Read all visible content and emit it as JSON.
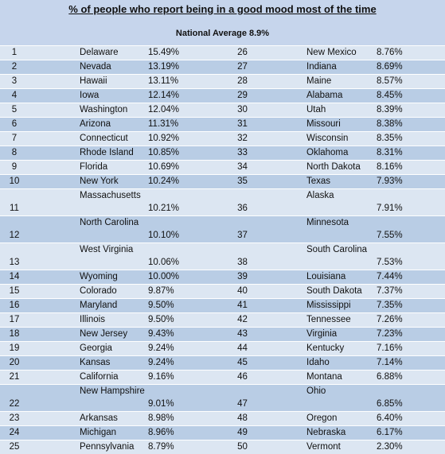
{
  "title": "% of people who report being in a good mood most of the time",
  "subtitle": "National Average 8.9%",
  "rows": [
    [
      1,
      "Delaware",
      "15.49%",
      26,
      "New Mexico",
      "8.76%"
    ],
    [
      2,
      "Nevada",
      "13.19%",
      27,
      "Indiana",
      "8.69%"
    ],
    [
      3,
      "Hawaii",
      "13.11%",
      28,
      "Maine",
      "8.57%"
    ],
    [
      4,
      "Iowa",
      "12.14%",
      29,
      "Alabama",
      "8.45%"
    ],
    [
      5,
      "Washington",
      "12.04%",
      30,
      "Utah",
      "8.39%"
    ],
    [
      6,
      "Arizona",
      "11.31%",
      31,
      "Missouri",
      "8.38%"
    ],
    [
      7,
      "Connecticut",
      "10.92%",
      32,
      "Wisconsin",
      "8.35%"
    ],
    [
      8,
      "Rhode Island",
      "10.85%",
      33,
      "Oklahoma",
      "8.31%"
    ],
    [
      9,
      "Florida",
      "10.69%",
      34,
      "North Dakota",
      "8.16%"
    ],
    [
      10,
      "New York",
      "10.24%",
      35,
      "Texas",
      "7.93%"
    ],
    [
      11,
      "Massachusetts",
      "10.21%",
      36,
      "Alaska",
      "7.91%"
    ],
    [
      12,
      "North Carolina",
      "10.10%",
      37,
      "Minnesota",
      "7.55%"
    ],
    [
      13,
      "West Virginia",
      "10.06%",
      38,
      "South Carolina",
      "7.53%"
    ],
    [
      14,
      "Wyoming",
      "10.00%",
      39,
      "Louisiana",
      "7.44%"
    ],
    [
      15,
      "Colorado",
      "9.87%",
      40,
      "South Dakota",
      "7.37%"
    ],
    [
      16,
      "Maryland",
      "9.50%",
      41,
      "Mississippi",
      "7.35%"
    ],
    [
      17,
      "Illinois",
      "9.50%",
      42,
      "Tennessee",
      "7.26%"
    ],
    [
      18,
      "New Jersey",
      "9.43%",
      43,
      "Virginia",
      "7.23%"
    ],
    [
      19,
      "Georgia",
      "9.24%",
      44,
      "Kentucky",
      "7.16%"
    ],
    [
      20,
      "Kansas",
      "9.24%",
      45,
      "Idaho",
      "7.14%"
    ],
    [
      21,
      "California",
      "9.16%",
      46,
      "Montana",
      "6.88%"
    ],
    [
      22,
      "New Hampshire",
      "9.01%",
      47,
      "Ohio",
      "6.85%"
    ],
    [
      23,
      "Arkansas",
      "8.98%",
      48,
      "Oregon",
      "6.40%"
    ],
    [
      24,
      "Michigan",
      "8.96%",
      49,
      "Nebraska",
      "6.17%"
    ],
    [
      25,
      "Pennsylvania",
      "8.79%",
      50,
      "Vermont",
      "2.30%"
    ]
  ]
}
